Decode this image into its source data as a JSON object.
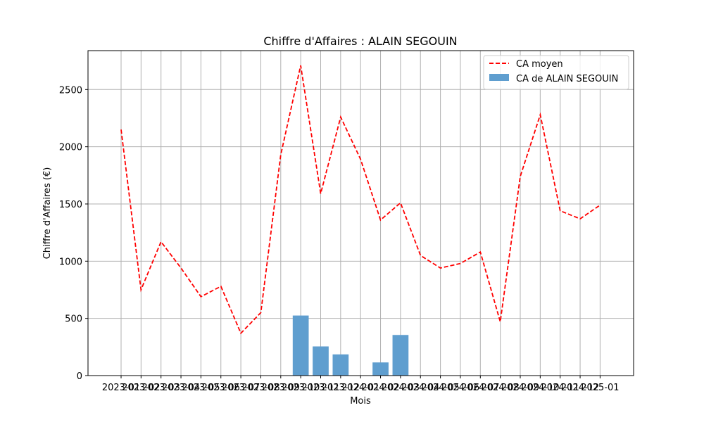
{
  "chart_data": {
    "type": "bar",
    "title": "Chiffre d'Affaires : ALAIN SEGOUIN",
    "xlabel": "Mois",
    "ylabel": "Chiffre d'Affaires (€)",
    "x": [
      "2023-01",
      "2023-02",
      "2023-03",
      "2023-04",
      "2023-05",
      "2023-06",
      "2023-07",
      "2023-08",
      "2023-09",
      "2023-10",
      "2023-11",
      "2023-12",
      "2024-01",
      "2024-02",
      "2024-03",
      "2024-04",
      "2024-05",
      "2024-06",
      "2024-07",
      "2024-08",
      "2024-09",
      "2024-10",
      "2024-11",
      "2024-12",
      "2025-01"
    ],
    "ylim": [
      0,
      2840
    ],
    "yticks": [
      0,
      500,
      1000,
      1500,
      2000,
      2500
    ],
    "grid": true,
    "legend_position": "top-right",
    "series": [
      {
        "name": "CA moyen",
        "type": "line",
        "style": "dashed",
        "color": "#ff0000",
        "values": [
          2150,
          750,
          1170,
          940,
          690,
          780,
          370,
          550,
          1930,
          2710,
          1590,
          2260,
          1890,
          1360,
          1510,
          1050,
          940,
          980,
          1080,
          470,
          1740,
          2280,
          1440,
          1370,
          1490
        ]
      },
      {
        "name": "CA de ALAIN SEGOUIN",
        "type": "bar",
        "color": "#5f9ecf",
        "values": [
          0,
          0,
          0,
          0,
          0,
          0,
          0,
          0,
          0,
          525,
          255,
          185,
          0,
          115,
          355,
          0,
          0,
          0,
          0,
          0,
          0,
          0,
          0,
          0,
          0
        ]
      }
    ]
  }
}
